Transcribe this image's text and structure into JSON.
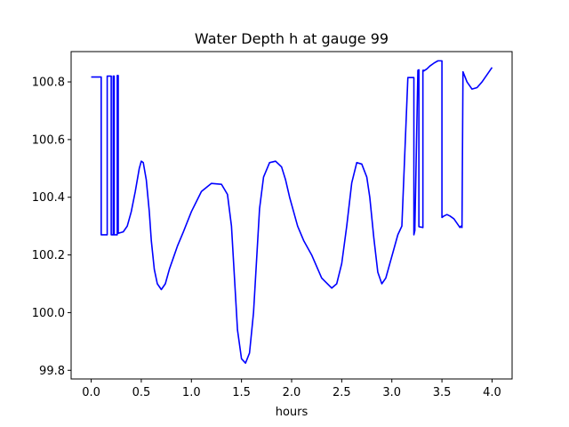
{
  "chart_data": {
    "type": "line",
    "title": "Water Depth h at gauge 99",
    "xlabel": "hours",
    "ylabel": "",
    "xlim": [
      -0.2,
      4.2
    ],
    "ylim": [
      99.77,
      100.905
    ],
    "xticks": [
      0.0,
      0.5,
      1.0,
      1.5,
      2.0,
      2.5,
      3.0,
      3.5,
      4.0
    ],
    "xtick_labels": [
      "0.0",
      "0.5",
      "1.0",
      "1.5",
      "2.0",
      "2.5",
      "3.0",
      "3.5",
      "4.0"
    ],
    "yticks": [
      99.8,
      100.0,
      100.2,
      100.4,
      100.6,
      100.8
    ],
    "ytick_labels": [
      "99.8",
      "100.0",
      "100.2",
      "100.4",
      "100.6",
      "100.8"
    ],
    "grid": false,
    "line_color": "#0000ff",
    "series": [
      {
        "x": [
          0.0,
          0.1,
          0.1,
          0.16,
          0.16,
          0.2,
          0.2,
          0.22,
          0.22,
          0.23,
          0.23,
          0.26,
          0.26,
          0.27,
          0.27,
          0.32,
          0.36,
          0.4,
          0.44,
          0.48,
          0.5,
          0.52,
          0.55,
          0.58,
          0.6,
          0.63,
          0.66,
          0.7,
          0.74,
          0.78,
          0.82,
          0.86,
          0.92,
          1.0,
          1.1,
          1.2,
          1.3,
          1.36,
          1.4,
          1.43,
          1.46,
          1.5,
          1.54,
          1.58,
          1.62,
          1.65,
          1.68,
          1.72,
          1.78,
          1.84,
          1.9,
          1.94,
          1.98,
          2.02,
          2.06,
          2.12,
          2.2,
          2.3,
          2.4,
          2.45,
          2.5,
          2.55,
          2.6,
          2.65,
          2.7,
          2.75,
          2.78,
          2.82,
          2.86,
          2.9,
          2.94,
          2.98,
          3.02,
          3.06,
          3.1,
          3.16,
          3.22,
          3.22,
          3.23,
          3.23,
          3.26,
          3.27,
          3.27,
          3.31,
          3.31,
          3.32,
          3.32,
          3.35,
          3.38,
          3.42,
          3.46,
          3.5,
          3.5,
          3.52,
          3.55,
          3.58,
          3.62,
          3.64,
          3.65,
          3.66,
          3.68,
          3.69,
          3.7,
          3.71,
          3.71,
          3.75,
          3.8,
          3.85,
          3.9,
          3.95,
          4.0
        ],
        "y": [
          100.817,
          100.817,
          100.27,
          100.27,
          100.82,
          100.82,
          100.27,
          100.27,
          100.82,
          100.82,
          100.27,
          100.27,
          100.822,
          100.822,
          100.275,
          100.28,
          100.3,
          100.35,
          100.42,
          100.5,
          100.525,
          100.52,
          100.46,
          100.35,
          100.25,
          100.15,
          100.1,
          100.08,
          100.1,
          100.15,
          100.19,
          100.23,
          100.28,
          100.35,
          100.42,
          100.448,
          100.445,
          100.41,
          100.3,
          100.12,
          99.94,
          99.84,
          99.825,
          99.86,
          100.0,
          100.18,
          100.36,
          100.47,
          100.52,
          100.525,
          100.505,
          100.46,
          100.4,
          100.35,
          100.3,
          100.25,
          100.2,
          100.12,
          100.085,
          100.1,
          100.17,
          100.3,
          100.45,
          100.52,
          100.515,
          100.47,
          100.4,
          100.26,
          100.14,
          100.1,
          100.12,
          100.17,
          100.22,
          100.27,
          100.3,
          100.815,
          100.815,
          100.27,
          100.285,
          100.295,
          100.84,
          100.842,
          100.298,
          100.295,
          100.84,
          100.84,
          100.838,
          100.845,
          100.855,
          100.865,
          100.873,
          100.873,
          100.33,
          100.335,
          100.34,
          100.335,
          100.325,
          100.315,
          100.31,
          100.305,
          100.295,
          100.3,
          100.295,
          100.835,
          100.835,
          100.8,
          100.775,
          100.78,
          100.8,
          100.825,
          100.85
        ]
      }
    ]
  }
}
